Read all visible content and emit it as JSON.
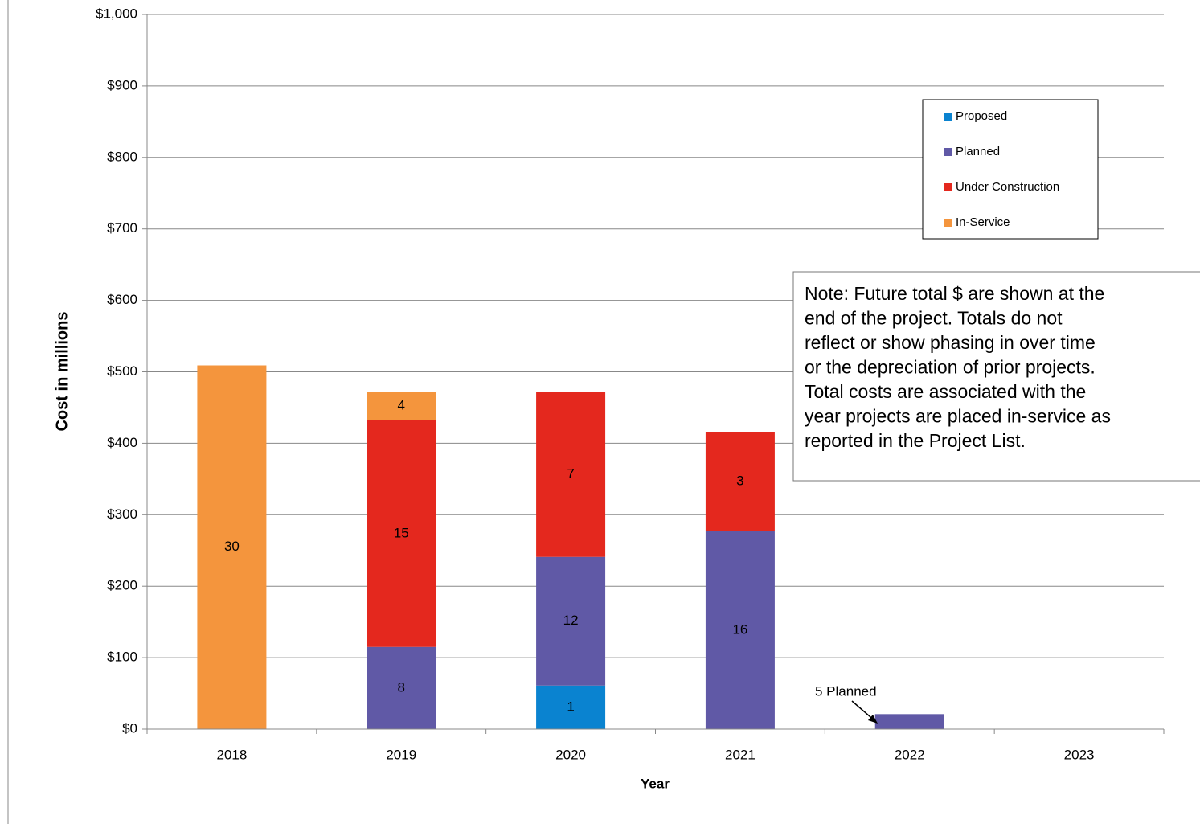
{
  "chart_data": {
    "type": "stacked_bar",
    "y_label": "Cost in millions",
    "x_label": "Year",
    "categories": [
      "2018",
      "2019",
      "2020",
      "2021",
      "2022",
      "2023"
    ],
    "series": [
      {
        "name": "Proposed",
        "color": "#0a83d0",
        "values": [
          null,
          null,
          61,
          null,
          null,
          null
        ],
        "project_counts": [
          null,
          null,
          1,
          null,
          null,
          null
        ]
      },
      {
        "name": "Planned",
        "color": "#6059a6",
        "values": [
          null,
          115,
          180,
          277,
          21,
          null
        ],
        "project_counts": [
          null,
          8,
          12,
          16,
          null,
          null
        ]
      },
      {
        "name": "Under Construction",
        "color": "#e4281e",
        "values": [
          null,
          317,
          231,
          139,
          null,
          null
        ],
        "project_counts": [
          null,
          15,
          7,
          3,
          null,
          null
        ]
      },
      {
        "name": "In-Service",
        "color": "#f4953d",
        "values": [
          509,
          40,
          null,
          null,
          null,
          null
        ],
        "project_counts": [
          30,
          4,
          null,
          null,
          null,
          null
        ]
      }
    ],
    "ylim": [
      0,
      1000
    ],
    "yticks": [
      {
        "value": 0,
        "label": "$0"
      },
      {
        "value": 100,
        "label": "$100"
      },
      {
        "value": 200,
        "label": "$200"
      },
      {
        "value": 300,
        "label": "$300"
      },
      {
        "value": 400,
        "label": "$400"
      },
      {
        "value": 500,
        "label": "$500"
      },
      {
        "value": 600,
        "label": "$600"
      },
      {
        "value": 700,
        "label": "$700"
      },
      {
        "value": 800,
        "label": "$800"
      },
      {
        "value": 900,
        "label": "$900"
      },
      {
        "value": 1000,
        "label": "$1,000"
      }
    ],
    "grid": true,
    "annotation": "5 Planned",
    "note": [
      "Note: Future total $ are shown at the",
      "end of the project. Totals do not",
      "reflect or show phasing in over time",
      "or the depreciation of prior projects.",
      "Total costs are associated with the",
      "year projects are placed in-service as",
      "reported in the Project List."
    ]
  }
}
